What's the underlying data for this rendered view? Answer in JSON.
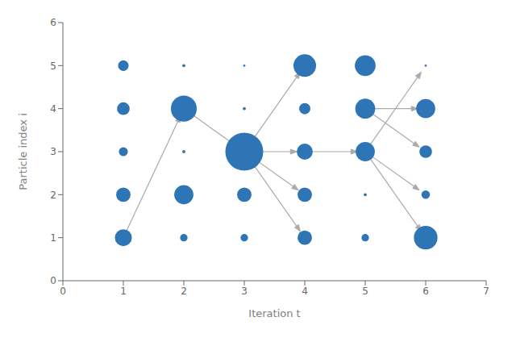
{
  "chart_data": {
    "type": "scatter",
    "x_label": "Iteration t",
    "y_label": "Particle index i",
    "xlim": [
      0,
      7
    ],
    "ylim": [
      0,
      6
    ],
    "xticks": [
      0,
      1,
      2,
      3,
      4,
      5,
      6,
      7
    ],
    "yticks": [
      0,
      1,
      2,
      3,
      4,
      5,
      6
    ],
    "grid": false,
    "color": "#2E75B6",
    "points": [
      {
        "x": 1,
        "y": 1,
        "size": 180
      },
      {
        "x": 1,
        "y": 2,
        "size": 130
      },
      {
        "x": 1,
        "y": 3,
        "size": 50
      },
      {
        "x": 1,
        "y": 4,
        "size": 100
      },
      {
        "x": 1,
        "y": 5,
        "size": 70
      },
      {
        "x": 2,
        "y": 1,
        "size": 35
      },
      {
        "x": 2,
        "y": 2,
        "size": 230
      },
      {
        "x": 2,
        "y": 3,
        "size": 6
      },
      {
        "x": 2,
        "y": 4,
        "size": 420
      },
      {
        "x": 2,
        "y": 5,
        "size": 6
      },
      {
        "x": 3,
        "y": 1,
        "size": 35
      },
      {
        "x": 3,
        "y": 2,
        "size": 130
      },
      {
        "x": 3,
        "y": 3,
        "size": 900
      },
      {
        "x": 3,
        "y": 4,
        "size": 6
      },
      {
        "x": 3,
        "y": 5,
        "size": 3
      },
      {
        "x": 4,
        "y": 1,
        "size": 130
      },
      {
        "x": 4,
        "y": 2,
        "size": 130
      },
      {
        "x": 4,
        "y": 3,
        "size": 160
      },
      {
        "x": 4,
        "y": 4,
        "size": 80
      },
      {
        "x": 4,
        "y": 5,
        "size": 320
      },
      {
        "x": 5,
        "y": 1,
        "size": 35
      },
      {
        "x": 5,
        "y": 2,
        "size": 6
      },
      {
        "x": 5,
        "y": 3,
        "size": 230
      },
      {
        "x": 5,
        "y": 4,
        "size": 250
      },
      {
        "x": 5,
        "y": 5,
        "size": 270
      },
      {
        "x": 6,
        "y": 1,
        "size": 350
      },
      {
        "x": 6,
        "y": 2,
        "size": 45
      },
      {
        "x": 6,
        "y": 3,
        "size": 100
      },
      {
        "x": 6,
        "y": 4,
        "size": 230
      },
      {
        "x": 6,
        "y": 5,
        "size": 3
      }
    ],
    "arrows": {
      "color": "#aaaaaa",
      "values": [
        {
          "x1": 1,
          "y1": 1,
          "x2": 2,
          "y2": 4
        },
        {
          "x1": 2,
          "y1": 4,
          "x2": 3,
          "y2": 3
        },
        {
          "x1": 3,
          "y1": 3,
          "x2": 4,
          "y2": 5
        },
        {
          "x1": 3,
          "y1": 3,
          "x2": 4,
          "y2": 3
        },
        {
          "x1": 3,
          "y1": 3,
          "x2": 4,
          "y2": 2
        },
        {
          "x1": 3,
          "y1": 3,
          "x2": 4,
          "y2": 1
        },
        {
          "x1": 4,
          "y1": 3,
          "x2": 5,
          "y2": 3
        },
        {
          "x1": 5,
          "y1": 4,
          "x2": 6,
          "y2": 4
        },
        {
          "x1": 5,
          "y1": 4,
          "x2": 6,
          "y2": 3
        },
        {
          "x1": 5,
          "y1": 3,
          "x2": 6,
          "y2": 5
        },
        {
          "x1": 5,
          "y1": 3,
          "x2": 6,
          "y2": 2
        },
        {
          "x1": 5,
          "y1": 3,
          "x2": 6,
          "y2": 1
        }
      ]
    }
  }
}
